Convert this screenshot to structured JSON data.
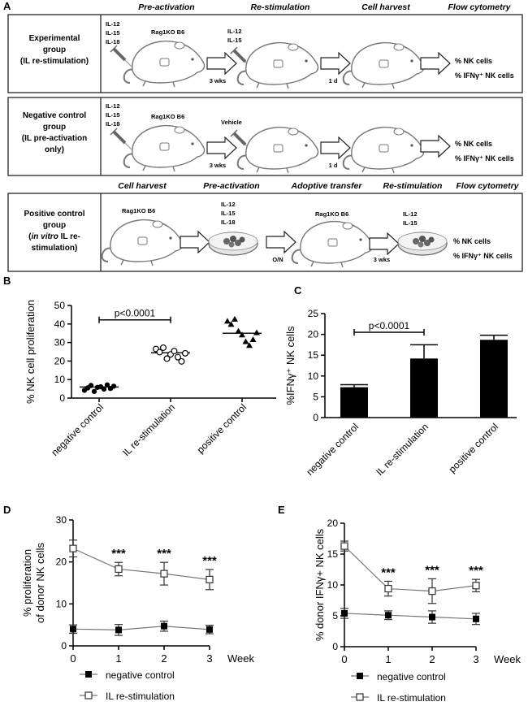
{
  "panel_a": {
    "letter": "A",
    "rows": [
      {
        "group_label": [
          "Experimental",
          "group",
          "(IL re-stimulation)"
        ],
        "stage_headers": [
          "Pre-activation",
          "Re-stimulation",
          "Cell harvest",
          "Flow cytometry"
        ],
        "cytokines_1": [
          "IL-12",
          "IL-15",
          "IL-18"
        ],
        "mouse_label": "Rag1KO B6",
        "cytokines_2": [
          "IL-12",
          "IL-15"
        ],
        "arrow_1_label": "3 wks",
        "arrow_2_label": "1 d",
        "readouts": [
          "% NK cells",
          "% IFNγ⁺ NK cells"
        ]
      },
      {
        "group_label": [
          "Negative control",
          "group",
          "(IL pre-activation",
          "only)"
        ],
        "cytokines_1": [
          "IL-12",
          "IL-15",
          "IL-18"
        ],
        "mouse_label": "Rag1KO B6",
        "vehicle_label": "Vehicle",
        "arrow_1_label": "3 wks",
        "arrow_2_label": "1 d",
        "readouts": [
          "% NK cells",
          "% IFNγ⁺ NK cells"
        ]
      },
      {
        "group_label_lines": [
          "Positive control",
          "group"
        ],
        "group_label_pre": "(",
        "group_label_italic": "in vitro",
        "group_label_post": " IL re-",
        "group_label_last": "stimulation)",
        "stage_headers": [
          "Cell harvest",
          "Pre-activation",
          "Adoptive transfer",
          "Re-stimulation",
          "Flow cytometry"
        ],
        "mouse_label_1": "Rag1KO B6",
        "cytokines_1": [
          "IL-12",
          "IL-15",
          "IL-18"
        ],
        "arrow_label_on": "O/N",
        "mouse_label_2": "Rag1KO B6",
        "cytokines_2": [
          "IL-12",
          "IL-15"
        ],
        "arrow_label_wks": "3 wks",
        "readouts": [
          "% NK cells",
          "% IFNγ⁺ NK cells"
        ]
      }
    ]
  },
  "chart_data": [
    {
      "panel": "B",
      "type": "scatter",
      "ylabel": "% NK cell proliferation",
      "ylim": [
        0,
        50
      ],
      "yticks": [
        0,
        10,
        20,
        30,
        40,
        50
      ],
      "categories": [
        "negative control",
        "IL re-stimulation",
        "positive control"
      ],
      "markers": [
        "filled-circle",
        "open-circle",
        "filled-triangle"
      ],
      "means": [
        6,
        24.5,
        35
      ],
      "points": [
        [
          4.2,
          5.5,
          6.8,
          3.6,
          5.8,
          6.1,
          4.9,
          7.1,
          5.2,
          6.4
        ],
        [
          26.5,
          24.8,
          27.2,
          21.3,
          23.6,
          25.4,
          22.1,
          19.8,
          24.2
        ],
        [
          41.5,
          39.8,
          42.6,
          36.2,
          34.1,
          30.5,
          28.4,
          31.6,
          35.3
        ]
      ],
      "annotation": {
        "label": "p<0.0001",
        "between": [
          0,
          1
        ]
      }
    },
    {
      "panel": "C",
      "type": "bar",
      "ylabel": "%IFNγ⁺ NK cells",
      "ylim": [
        0,
        25
      ],
      "yticks": [
        0,
        5,
        10,
        15,
        20,
        25
      ],
      "categories": [
        "negative control",
        "IL re-stimulation",
        "positive control"
      ],
      "values": [
        7.3,
        14.2,
        18.7
      ],
      "errors": [
        0.6,
        3.3,
        1.1
      ],
      "annotation": {
        "label": "p<0.0001",
        "between": [
          0,
          1
        ]
      }
    },
    {
      "panel": "D",
      "type": "line",
      "ylabel": [
        "% proliferation",
        "of donor NK cells"
      ],
      "xlabel": "Week",
      "x": [
        0,
        1,
        2,
        3
      ],
      "ylim": [
        0,
        30
      ],
      "yticks": [
        0,
        10,
        20,
        30
      ],
      "series": [
        {
          "name": "negative control",
          "marker": "filled-square",
          "values": [
            4.0,
            3.8,
            4.7,
            3.9
          ],
          "errors": [
            1.0,
            1.3,
            1.2,
            1.0
          ]
        },
        {
          "name": "IL re-stimulation",
          "marker": "open-square",
          "values": [
            23.2,
            18.3,
            17.2,
            15.8
          ],
          "errors": [
            2.0,
            1.6,
            2.7,
            2.4
          ]
        }
      ],
      "significance": [
        {
          "x": 1,
          "label": "***"
        },
        {
          "x": 2,
          "label": "***"
        },
        {
          "x": 3,
          "label": "***"
        }
      ]
    },
    {
      "panel": "E",
      "type": "line",
      "ylabel": "% donor IFNγ+ NK cells",
      "xlabel": "Week",
      "x": [
        0,
        1,
        2,
        3
      ],
      "ylim": [
        0,
        20
      ],
      "yticks": [
        0,
        5,
        10,
        15,
        20
      ],
      "series": [
        {
          "name": "negative control",
          "marker": "filled-square",
          "values": [
            5.4,
            5.1,
            4.8,
            4.5
          ],
          "errors": [
            0.8,
            0.7,
            1.0,
            0.9
          ]
        },
        {
          "name": "IL re-stimulation",
          "marker": "open-square",
          "values": [
            16.3,
            9.4,
            9.0,
            9.9
          ],
          "errors": [
            0.8,
            1.2,
            2.0,
            1.0
          ]
        }
      ],
      "significance": [
        {
          "x": 1,
          "label": "***"
        },
        {
          "x": 2,
          "label": "***"
        },
        {
          "x": 3,
          "label": "***"
        }
      ]
    }
  ],
  "style": {
    "ink": "#000000",
    "box": "#333333",
    "mouse": "#777777",
    "dish": "#dddddd",
    "cells": "#555555"
  }
}
